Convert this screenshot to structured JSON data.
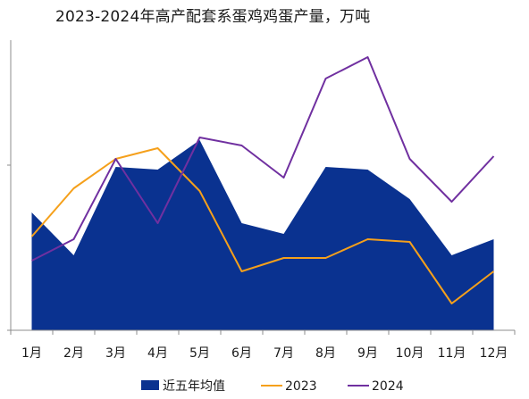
{
  "title": "2023-2024年高产配套系蛋鸡鸡蛋产量，万吨",
  "chart_data": {
    "type": "line",
    "title": "2023-2024年高产配套系蛋鸡鸡蛋产量，万吨",
    "categories": [
      "1月",
      "2月",
      "3月",
      "4月",
      "5月",
      "6月",
      "7月",
      "8月",
      "9月",
      "10月",
      "11月",
      "12月"
    ],
    "ylim": [
      0,
      100
    ],
    "y_tick_labels_shown": false,
    "grid": false,
    "legend_position": "bottom",
    "series": [
      {
        "name": "近五年均值",
        "render": "area",
        "color": "#0a3290",
        "values": [
          44,
          28,
          61,
          60,
          71,
          40,
          36,
          61,
          60,
          49,
          28,
          34
        ]
      },
      {
        "name": "2023",
        "render": "line",
        "color": "#f5a01b",
        "values": [
          35,
          53,
          64,
          68,
          52,
          22,
          27,
          27,
          34,
          33,
          10,
          22
        ]
      },
      {
        "name": "2024",
        "render": "line",
        "color": "#7030a0",
        "values": [
          26,
          34,
          64,
          40,
          72,
          69,
          57,
          94,
          102,
          64,
          48,
          65
        ]
      }
    ]
  }
}
